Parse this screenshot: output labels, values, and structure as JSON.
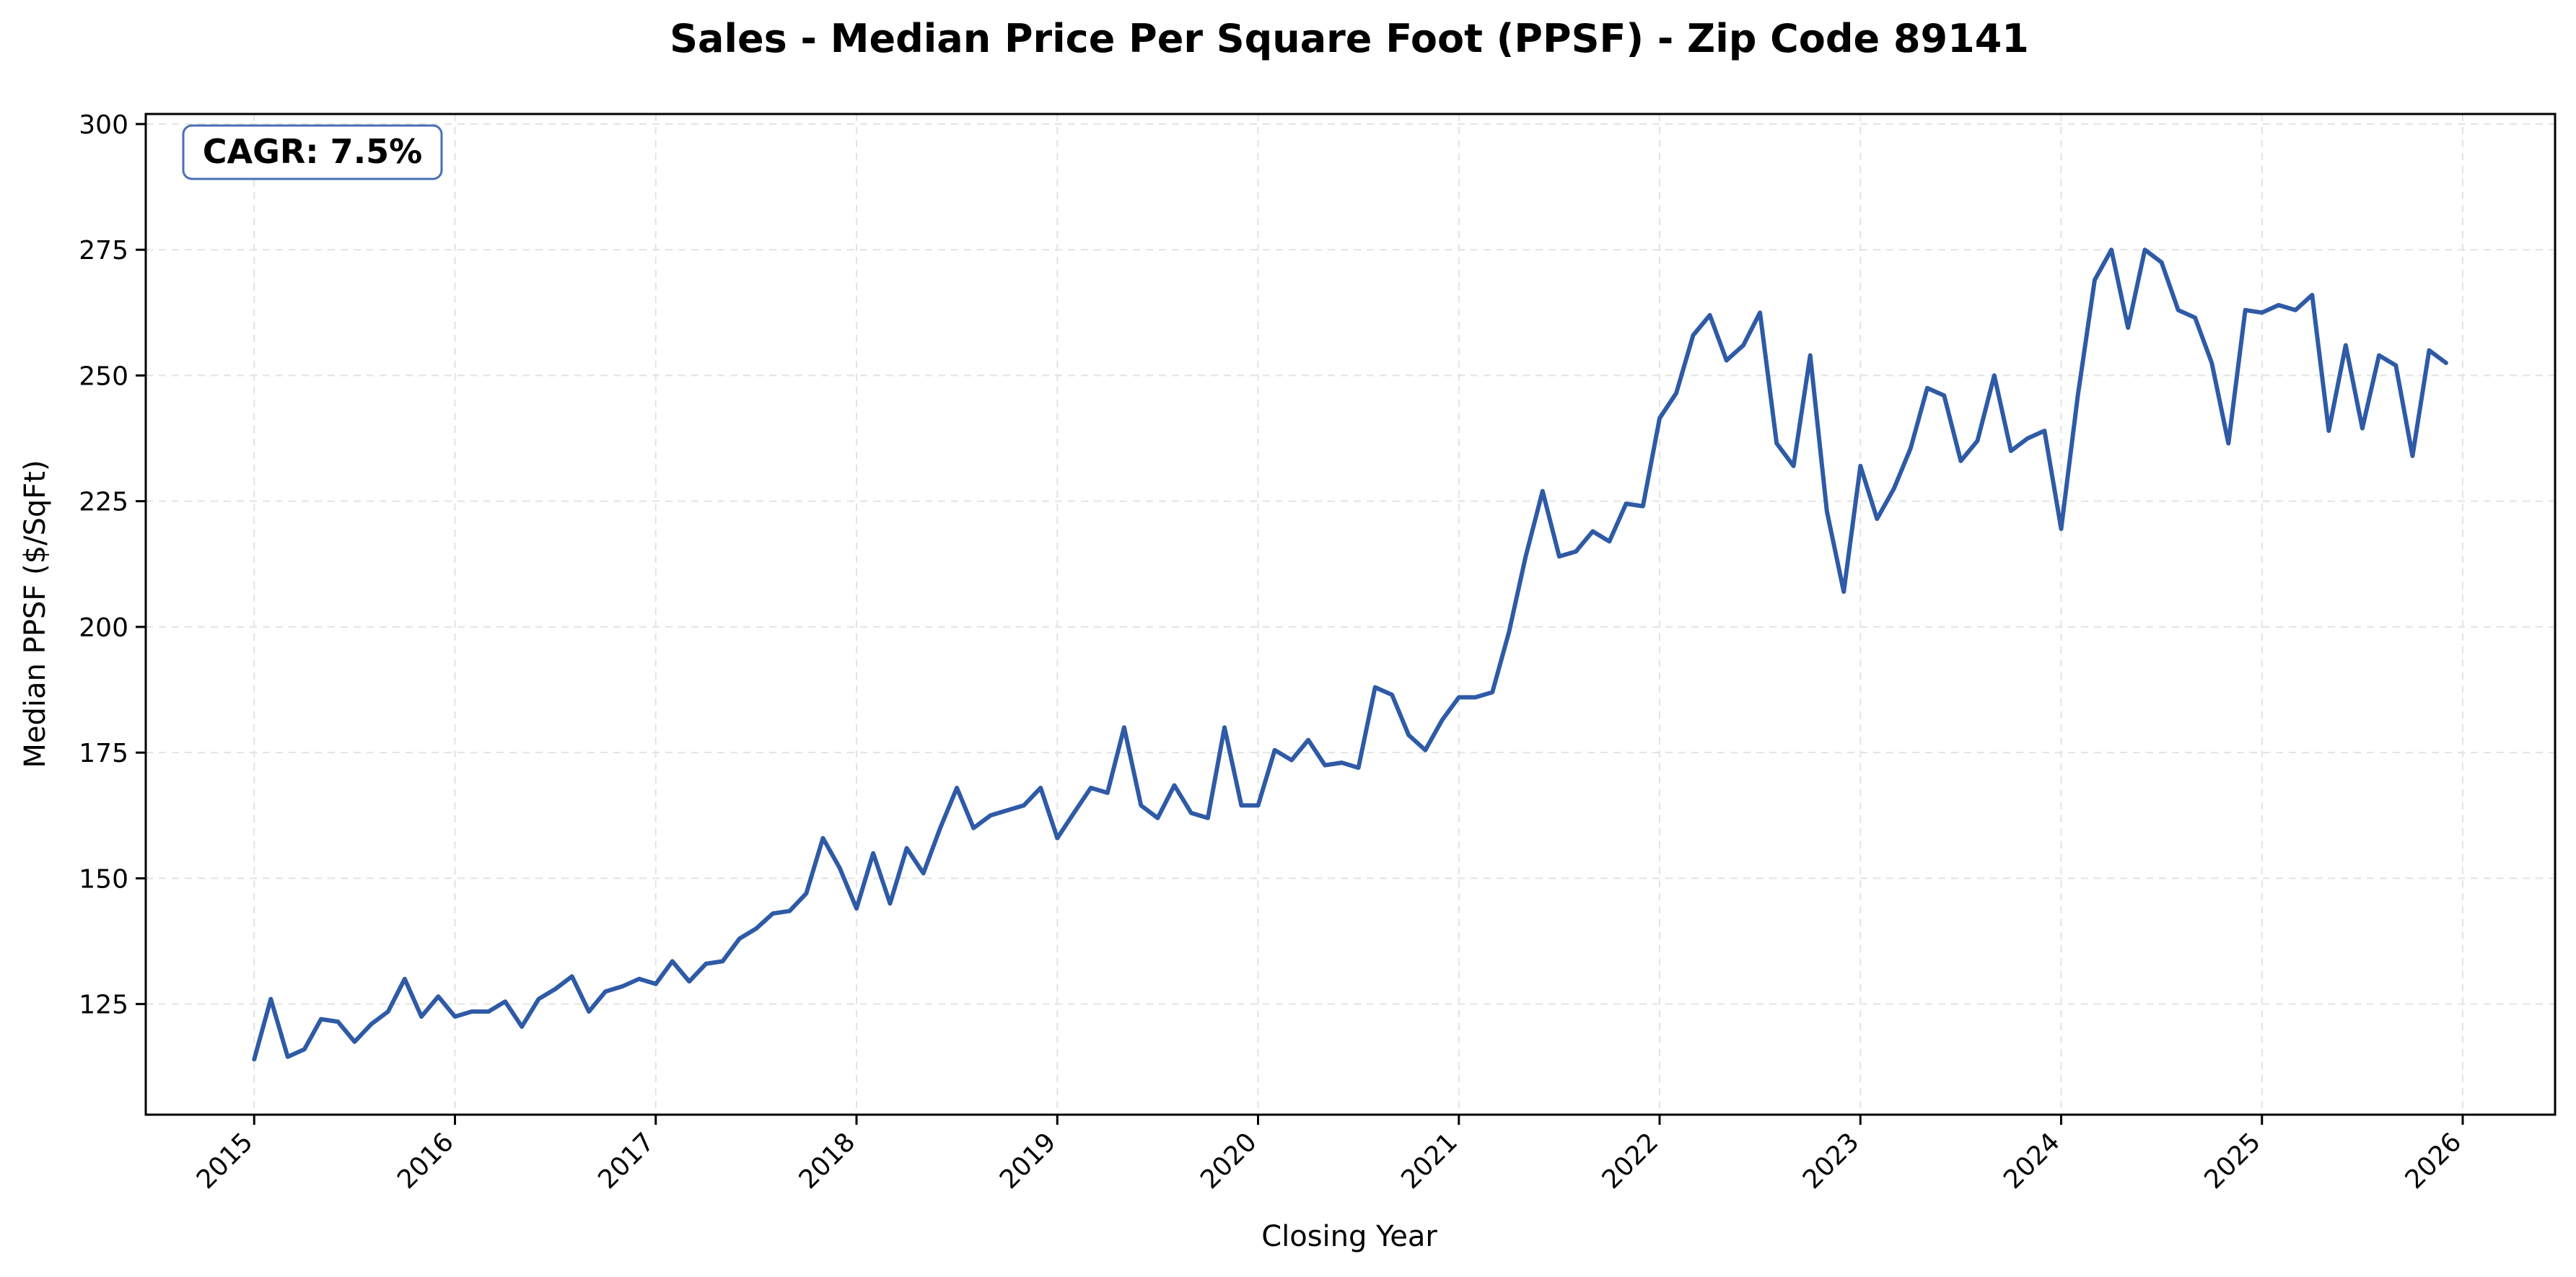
{
  "chart_data": {
    "type": "line",
    "title": "Sales - Median Price Per Square Foot (PPSF) - Zip Code 89141",
    "xlabel": "Closing Year",
    "ylabel": "Median PPSF ($/SqFt)",
    "annotation": "CAGR: 7.5%",
    "xlim": [
      2014.46,
      2026.46
    ],
    "ylim": [
      103,
      302
    ],
    "xticks": [
      2015,
      2016,
      2017,
      2018,
      2019,
      2020,
      2021,
      2022,
      2023,
      2024,
      2025,
      2026
    ],
    "yticks": [
      125,
      150,
      175,
      200,
      225,
      250,
      275,
      300
    ],
    "grid": true,
    "series_color": "#2E5AA6",
    "series": [
      {
        "x": [
          2015.0,
          2015.083,
          2015.167,
          2015.25,
          2015.333,
          2015.417,
          2015.5,
          2015.583,
          2015.667,
          2015.75,
          2015.833,
          2015.917,
          2016.0,
          2016.083,
          2016.167,
          2016.25,
          2016.333,
          2016.417,
          2016.5,
          2016.583,
          2016.667,
          2016.75,
          2016.833,
          2016.917,
          2017.0,
          2017.083,
          2017.167,
          2017.25,
          2017.333,
          2017.417,
          2017.5,
          2017.583,
          2017.667,
          2017.75,
          2017.833,
          2017.917,
          2018.0,
          2018.083,
          2018.167,
          2018.25,
          2018.333,
          2018.417,
          2018.5,
          2018.583,
          2018.667,
          2018.75,
          2018.833,
          2018.917,
          2019.0,
          2019.083,
          2019.167,
          2019.25,
          2019.333,
          2019.417,
          2019.5,
          2019.583,
          2019.667,
          2019.75,
          2019.833,
          2019.917,
          2020.0,
          2020.083,
          2020.167,
          2020.25,
          2020.333,
          2020.417,
          2020.5,
          2020.583,
          2020.667,
          2020.75,
          2020.833,
          2020.917,
          2021.0,
          2021.083,
          2021.167,
          2021.25,
          2021.333,
          2021.417,
          2021.5,
          2021.583,
          2021.667,
          2021.75,
          2021.833,
          2021.917,
          2022.0,
          2022.083,
          2022.167,
          2022.25,
          2022.333,
          2022.417,
          2022.5,
          2022.583,
          2022.667,
          2022.75,
          2022.833,
          2022.917,
          2023.0,
          2023.083,
          2023.167,
          2023.25,
          2023.333,
          2023.417,
          2023.5,
          2023.583,
          2023.667,
          2023.75,
          2023.833,
          2023.917,
          2024.0,
          2024.083,
          2024.167,
          2024.25,
          2024.333,
          2024.417,
          2024.5,
          2024.583,
          2024.667,
          2024.75,
          2024.833,
          2024.917,
          2025.0,
          2025.083,
          2025.167,
          2025.25,
          2025.333,
          2025.417,
          2025.5,
          2025.583,
          2025.667,
          2025.75,
          2025.833,
          2025.917
        ],
        "y": [
          114,
          126,
          114.5,
          116,
          122,
          121.5,
          117.5,
          121,
          123.5,
          130,
          122.5,
          126.5,
          122.5,
          123.5,
          123.5,
          125.5,
          120.5,
          126,
          128,
          130.5,
          123.5,
          127.5,
          128.5,
          130,
          129,
          133.5,
          129.5,
          133,
          133.5,
          138,
          140,
          143,
          143.5,
          147,
          158,
          152,
          144,
          155,
          145,
          156,
          151,
          160,
          168,
          160,
          162.5,
          163.5,
          164.5,
          168,
          158,
          163,
          168,
          167,
          180,
          164.5,
          162,
          168.5,
          163,
          162,
          180,
          164.5,
          164.5,
          175.5,
          173.5,
          177.5,
          172.5,
          173,
          172,
          188,
          186.5,
          178.5,
          175.5,
          181.5,
          186,
          186,
          187,
          199,
          214,
          227,
          214,
          215,
          219,
          217,
          224.5,
          224,
          241.5,
          246.5,
          258,
          262,
          253,
          256,
          262.5,
          236.5,
          232,
          254,
          223,
          207,
          232,
          221.5,
          227.5,
          235.5,
          247.5,
          246,
          233,
          237,
          250,
          235,
          237.5,
          239,
          219.5,
          246,
          269,
          275,
          259.5,
          275,
          272.5,
          263,
          261.5,
          252.5,
          236.5,
          263,
          262.5,
          264,
          263,
          266,
          239,
          256,
          239.5,
          254,
          252,
          234,
          255,
          252.5
        ]
      }
    ]
  }
}
